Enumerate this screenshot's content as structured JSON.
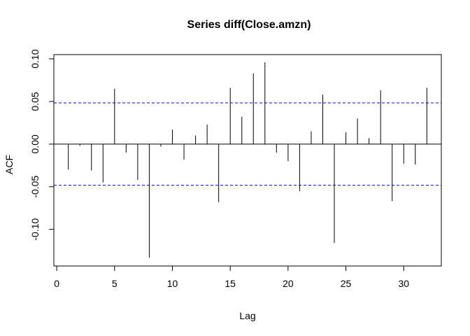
{
  "chart_data": {
    "type": "bar",
    "title": "Series  diff(Close.amzn)",
    "xlabel": "Lag",
    "ylabel": "ACF",
    "xlim": [
      -0.25,
      33.25
    ],
    "ylim": [
      -0.143,
      0.105
    ],
    "x_ticks": [
      0,
      5,
      10,
      15,
      20,
      25,
      30
    ],
    "x_tick_labels": [
      "0",
      "5",
      "10",
      "15",
      "20",
      "25",
      "30"
    ],
    "y_ticks": [
      -0.1,
      -0.05,
      0.0,
      0.05,
      0.1
    ],
    "y_tick_labels": [
      "-0.10",
      "-0.05",
      "0.00",
      "0.05",
      "0.10"
    ],
    "confidence_bounds": [
      0.0483,
      -0.0483
    ],
    "confidence_color": "#0000ff",
    "lags": [
      1,
      2,
      3,
      4,
      5,
      6,
      7,
      8,
      9,
      10,
      11,
      12,
      13,
      14,
      15,
      16,
      17,
      18,
      19,
      20,
      21,
      22,
      23,
      24,
      25,
      26,
      27,
      28,
      29,
      30,
      31,
      32
    ],
    "values": [
      -0.03,
      -0.002,
      -0.031,
      -0.045,
      0.065,
      -0.01,
      -0.042,
      -0.133,
      -0.003,
      0.017,
      -0.018,
      0.01,
      0.023,
      -0.068,
      0.066,
      0.032,
      0.083,
      0.096,
      -0.01,
      -0.02,
      -0.055,
      0.015,
      0.058,
      -0.116,
      0.014,
      0.03,
      0.007,
      0.063,
      -0.067,
      -0.023,
      -0.024,
      0.066
    ]
  }
}
